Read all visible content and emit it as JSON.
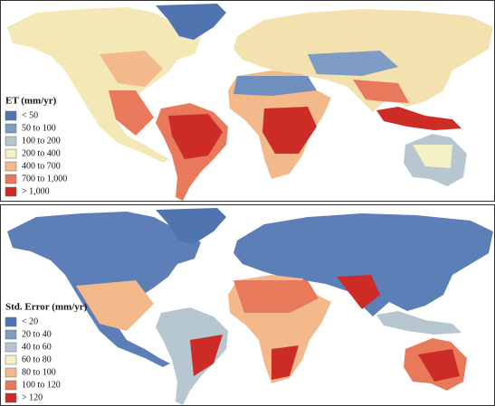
{
  "panels": [
    {
      "legend": {
        "title": "ET (mm/yr)",
        "items": [
          {
            "label": "< 50",
            "color": "#4f74b0"
          },
          {
            "label": "50 to 100",
            "color": "#7f9cc4"
          },
          {
            "label": "100 to 200",
            "color": "#b6c7cf"
          },
          {
            "label": "200 to 400",
            "color": "#f5f1c6"
          },
          {
            "label": "400 to 700",
            "color": "#f4b98a"
          },
          {
            "label": "700 to 1,000",
            "color": "#e8795a"
          },
          {
            "label": "> 1,000",
            "color": "#cc2b26"
          }
        ]
      }
    },
    {
      "legend": {
        "title": "Std. Error (mm/yr)",
        "items": [
          {
            "label": "< 20",
            "color": "#4f74b0"
          },
          {
            "label": "20 to 40",
            "color": "#7f9cc4"
          },
          {
            "label": "40 to 60",
            "color": "#b6c7cf"
          },
          {
            "label": "60 to 80",
            "color": "#f5f1c6"
          },
          {
            "label": "80 to 100",
            "color": "#f4b98a"
          },
          {
            "label": "100 to 120",
            "color": "#e8795a"
          },
          {
            "label": "> 120",
            "color": "#cc2b26"
          }
        ]
      }
    }
  ]
}
